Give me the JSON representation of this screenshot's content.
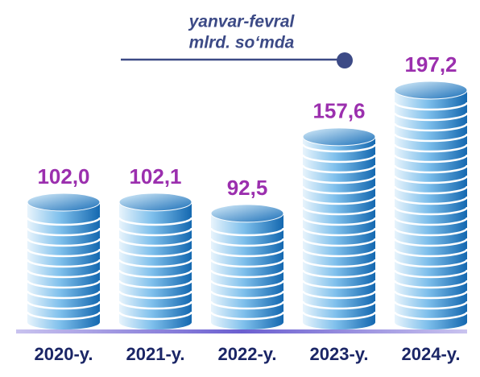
{
  "chart_data": {
    "type": "coin-stack",
    "title": "yanvar-fevral",
    "subtitle": "mlrd. so‘mda",
    "categories": [
      "2020-y.",
      "2021-y.",
      "2022-y.",
      "2023-y.",
      "2024-y."
    ],
    "values": [
      102.0,
      102.1,
      92.5,
      157.6,
      197.2
    ],
    "value_labels": [
      "102,0",
      "102,1",
      "92,5",
      "157,6",
      "197,2"
    ],
    "color": "#1e7fc8",
    "label_color": "#9b2fae"
  }
}
